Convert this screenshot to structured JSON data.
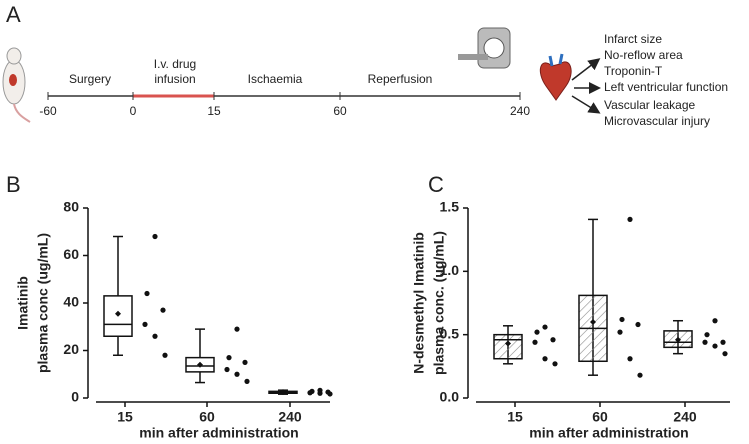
{
  "panel_labels": [
    "A",
    "B",
    "C"
  ],
  "timeline": {
    "ticks": [
      -60,
      0,
      15,
      60,
      240
    ],
    "phases": [
      [
        "Surgery"
      ],
      [
        "I.v. drug",
        "infusion"
      ],
      [
        "Ischaemia"
      ],
      [
        "Reperfusion"
      ]
    ],
    "outcomes": [
      [
        "Infarct size",
        "No-reflow area",
        "Troponin-T"
      ],
      [
        "Left ventricular function"
      ],
      [
        "Vascular leakage",
        "Microvascular injury"
      ]
    ]
  },
  "chart_data": [
    {
      "type": "box",
      "ylabel": [
        "Imatinib",
        "plasma conc (ug/mL)"
      ],
      "xlabel": "min after administration",
      "categories": [
        "15",
        "60",
        "240"
      ],
      "ylim": [
        0,
        80
      ],
      "yticks": [
        0,
        20,
        40,
        60,
        80
      ],
      "hatch": false,
      "boxes": [
        {
          "whislo": 18,
          "q1": 26,
          "med": 31,
          "q3": 43,
          "whishi": 68,
          "mean": 35.5,
          "points": [
            68,
            44,
            37,
            31,
            26,
            18
          ]
        },
        {
          "whislo": 6.5,
          "q1": 11,
          "med": 13.5,
          "q3": 17,
          "whishi": 29,
          "mean": 14,
          "points": [
            29,
            17,
            15,
            12,
            10,
            7
          ]
        },
        {
          "whislo": 1.6,
          "q1": 2.0,
          "med": 2.4,
          "q3": 2.8,
          "whishi": 3.3,
          "mean": 2.5,
          "points": [
            3.2,
            2.8,
            2.5,
            2.2,
            2.0,
            1.7
          ]
        }
      ]
    },
    {
      "type": "box",
      "ylabel": [
        "N-desmethyl Imatinib",
        "plasma conc. (ug/mL)"
      ],
      "xlabel": "min after administration",
      "categories": [
        "15",
        "60",
        "240"
      ],
      "ylim": [
        0,
        1.5
      ],
      "yticks": [
        {
          "value": 0,
          "label": "0.0"
        },
        0.5,
        {
          "value": 1,
          "label": "1.0"
        },
        1.5
      ],
      "hatch": true,
      "boxes": [
        {
          "whislo": 0.27,
          "q1": 0.31,
          "med": 0.46,
          "q3": 0.5,
          "whishi": 0.57,
          "mean": 0.43,
          "points": [
            0.56,
            0.52,
            0.46,
            0.44,
            0.31,
            0.27
          ]
        },
        {
          "whislo": 0.18,
          "q1": 0.29,
          "med": 0.55,
          "q3": 0.81,
          "whishi": 1.41,
          "mean": 0.6,
          "points": [
            1.41,
            0.62,
            0.58,
            0.52,
            0.31,
            0.18
          ]
        },
        {
          "whislo": 0.35,
          "q1": 0.4,
          "med": 0.44,
          "q3": 0.53,
          "whishi": 0.61,
          "mean": 0.46,
          "points": [
            0.61,
            0.5,
            0.44,
            0.44,
            0.41,
            0.35
          ]
        }
      ]
    }
  ]
}
